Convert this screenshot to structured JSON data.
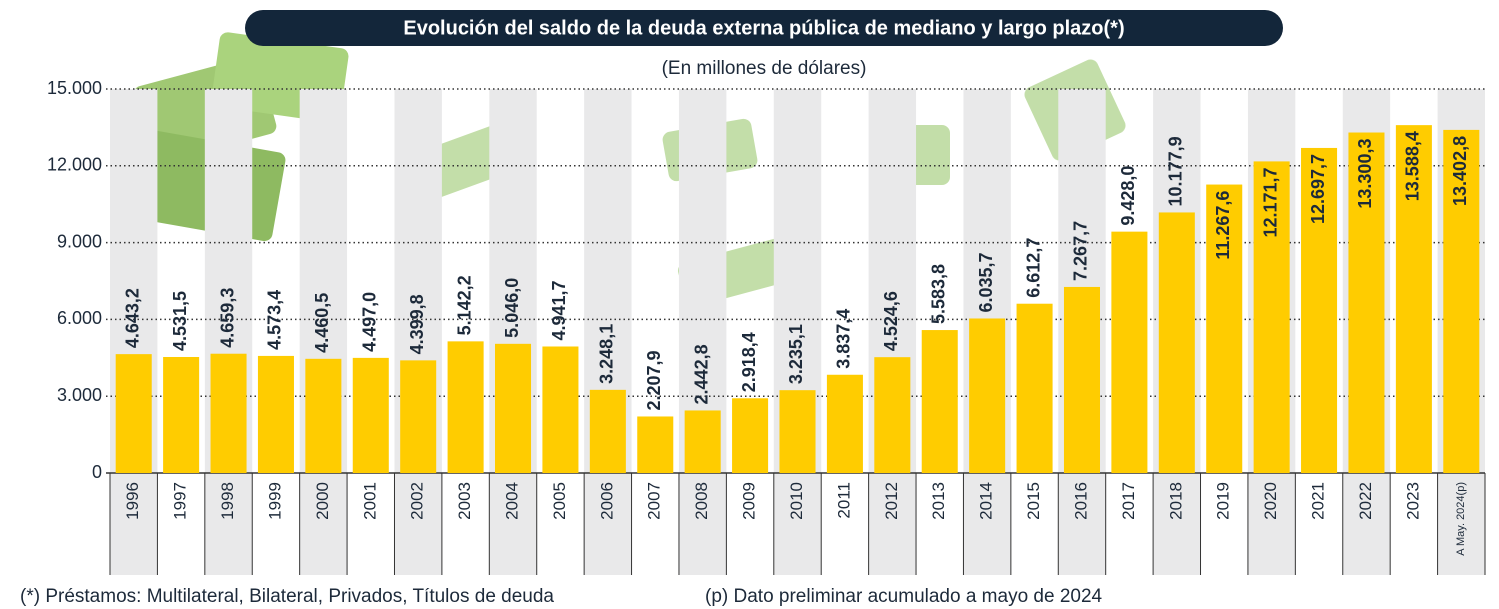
{
  "chart_data": {
    "type": "bar",
    "title": "Evolución del saldo de la deuda externa pública de mediano y largo plazo(*)",
    "subtitle": "(En millones de dólares)",
    "categories": [
      "1996",
      "1997",
      "1998",
      "1999",
      "2000",
      "2001",
      "2002",
      "2003",
      "2004",
      "2005",
      "2006",
      "2007",
      "2008",
      "2009",
      "2010",
      "2011",
      "2012",
      "2013",
      "2014",
      "2015",
      "2016",
      "2017",
      "2018",
      "2019",
      "2020",
      "2021",
      "2022",
      "2023",
      "A May. 2024(p)"
    ],
    "values": [
      4643.2,
      4531.5,
      4659.3,
      4573.4,
      4460.5,
      4497.0,
      4399.8,
      5142.2,
      5046.0,
      4941.7,
      3248.1,
      2207.9,
      2442.8,
      2918.4,
      3235.1,
      3837.4,
      4524.6,
      5583.8,
      6035.7,
      6612.7,
      7267.7,
      9428.0,
      10177.9,
      11267.6,
      12171.7,
      12697.7,
      13300.3,
      13588.4,
      13402.8
    ],
    "value_labels": [
      "4.643,2",
      "4.531,5",
      "4.659,3",
      "4.573,4",
      "4.460,5",
      "4.497,0",
      "4.399,8",
      "5.142,2",
      "5.046,0",
      "4.941,7",
      "3.248,1",
      "2.207,9",
      "2.442,8",
      "2.918,4",
      "3.235,1",
      "3.837,4",
      "4.524,6",
      "5.583,8",
      "6.035,7",
      "6.612,7",
      "7.267,7",
      "9.428,0",
      "10.177,9",
      "11.267,6",
      "12.171,7",
      "12.697,7",
      "13.300,3",
      "13.588,4",
      "13.402,8"
    ],
    "color": "#ffcc00",
    "ylim": [
      0,
      15000
    ],
    "yticks": [
      0,
      {
        "value": 3000,
        "label": "3.000"
      },
      {
        "value": 6000,
        "label": "6.000"
      },
      {
        "value": 9000,
        "label": "9.000"
      },
      {
        "value": 12000,
        "label": "12.000"
      },
      {
        "value": 15000,
        "label": "15.000"
      }
    ],
    "grid": true,
    "notes": [
      "(*) Préstamos: Multilateral, Bilateral, Privados, Títulos de deuda",
      "(p) Dato preliminar acumulado a mayo de 2024"
    ]
  }
}
